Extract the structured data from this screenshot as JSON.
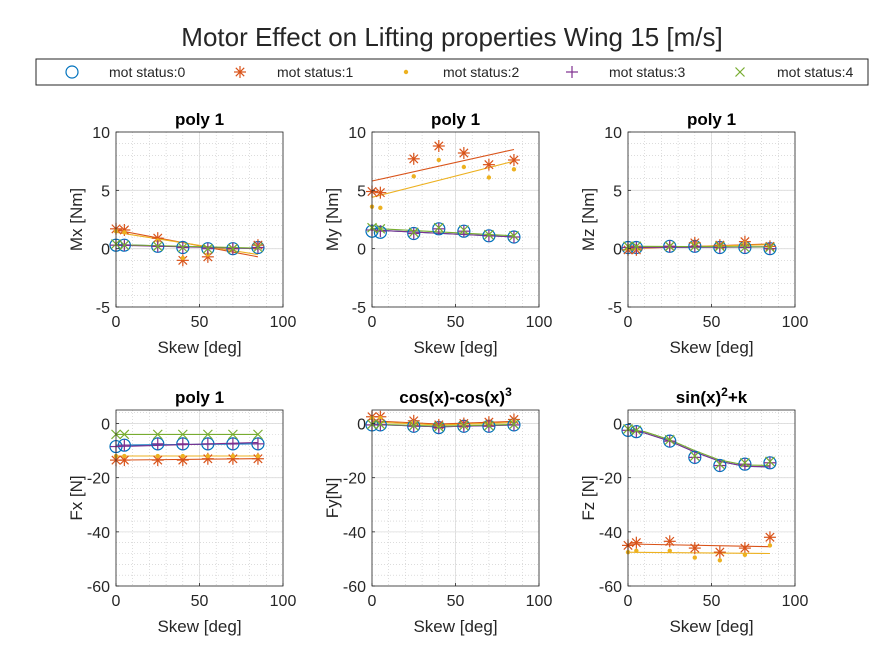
{
  "figure": {
    "title": "Motor Effect on Lifting properties Wing 15 [m/s]"
  },
  "legend": [
    {
      "label": "mot status:0",
      "marker": "circle",
      "color": "#0072BD"
    },
    {
      "label": "mot status:1",
      "marker": "asterisk",
      "color": "#D95319"
    },
    {
      "label": "mot status:2",
      "marker": "dot",
      "color": "#EDB120"
    },
    {
      "label": "mot status:3",
      "marker": "plus",
      "color": "#7E2F8E"
    },
    {
      "label": "mot status:4",
      "marker": "cross",
      "color": "#77AC30"
    }
  ],
  "chart_data": [
    {
      "type": "scatter",
      "title": "poly 1",
      "xlabel": "Skew [deg]",
      "ylabel": "Mx [Nm]",
      "xlim": [
        0,
        100
      ],
      "ylim": [
        -5,
        10
      ],
      "xticks": [
        0,
        50,
        100
      ],
      "yticks": [
        -5,
        0,
        5,
        10
      ],
      "grid": true,
      "minor_grid": true,
      "x": [
        0,
        5,
        25,
        40,
        55,
        70,
        85
      ],
      "series": [
        {
          "name": "mot status:0",
          "values": [
            0.3,
            0.3,
            0.2,
            0.1,
            0.0,
            0.0,
            0.1
          ],
          "fit": [
            [
              0,
              0.35
            ],
            [
              85,
              0.0
            ]
          ]
        },
        {
          "name": "mot status:1",
          "values": [
            1.7,
            1.6,
            0.9,
            -1.0,
            -0.7,
            0.0,
            0.3
          ],
          "fit": [
            [
              0,
              1.6
            ],
            [
              85,
              -0.7
            ]
          ]
        },
        {
          "name": "mot status:2",
          "values": [
            1.5,
            1.4,
            0.7,
            -0.8,
            -0.5,
            0.0,
            0.2
          ],
          "fit": [
            [
              0,
              1.4
            ],
            [
              85,
              -0.5
            ]
          ]
        },
        {
          "name": "mot status:3",
          "values": [
            0.3,
            0.3,
            0.2,
            0.1,
            0.0,
            0.0,
            0.1
          ],
          "fit": [
            [
              0,
              0.3
            ],
            [
              85,
              0.0
            ]
          ]
        },
        {
          "name": "mot status:4",
          "values": [
            0.4,
            0.3,
            0.2,
            0.1,
            0.0,
            0.0,
            0.1
          ],
          "fit": [
            [
              0,
              0.35
            ],
            [
              85,
              0.05
            ]
          ]
        }
      ]
    },
    {
      "type": "scatter",
      "title": "poly 1",
      "xlabel": "Skew [deg]",
      "ylabel": "My [Nm]",
      "xlim": [
        0,
        100
      ],
      "ylim": [
        -5,
        10
      ],
      "xticks": [
        0,
        50,
        100
      ],
      "yticks": [
        -5,
        0,
        5,
        10
      ],
      "grid": true,
      "minor_grid": true,
      "x": [
        0,
        5,
        25,
        40,
        55,
        70,
        85
      ],
      "series": [
        {
          "name": "mot status:0",
          "values": [
            1.5,
            1.4,
            1.3,
            1.7,
            1.5,
            1.1,
            1.0
          ],
          "fit": [
            [
              0,
              1.6
            ],
            [
              85,
              1.0
            ]
          ]
        },
        {
          "name": "mot status:1",
          "values": [
            4.9,
            4.8,
            7.7,
            8.8,
            8.2,
            7.2,
            7.6
          ],
          "fit": [
            [
              0,
              5.8
            ],
            [
              85,
              8.5
            ]
          ]
        },
        {
          "name": "mot status:2",
          "values": [
            3.6,
            3.5,
            6.2,
            7.6,
            7.0,
            6.1,
            6.8
          ],
          "fit": [
            [
              0,
              4.4
            ],
            [
              85,
              7.5
            ]
          ]
        },
        {
          "name": "mot status:3",
          "values": [
            1.6,
            1.5,
            1.3,
            1.7,
            1.5,
            1.1,
            1.0
          ],
          "fit": [
            [
              0,
              1.6
            ],
            [
              85,
              1.0
            ]
          ]
        },
        {
          "name": "mot status:4",
          "values": [
            1.8,
            1.7,
            1.4,
            1.8,
            1.6,
            1.2,
            1.1
          ],
          "fit": [
            [
              0,
              1.75
            ],
            [
              85,
              1.1
            ]
          ]
        }
      ]
    },
    {
      "type": "scatter",
      "title": "poly 1",
      "xlabel": "Skew [deg]",
      "ylabel": "Mz [Nm]",
      "xlim": [
        0,
        100
      ],
      "ylim": [
        -5,
        10
      ],
      "xticks": [
        0,
        50,
        100
      ],
      "yticks": [
        -5,
        0,
        5,
        10
      ],
      "grid": true,
      "minor_grid": true,
      "x": [
        0,
        5,
        25,
        40,
        55,
        70,
        85
      ],
      "series": [
        {
          "name": "mot status:0",
          "values": [
            0.1,
            0.1,
            0.2,
            0.2,
            0.1,
            0.1,
            0.0
          ],
          "fit": [
            [
              0,
              0.1
            ],
            [
              85,
              0.15
            ]
          ]
        },
        {
          "name": "mot status:1",
          "values": [
            -0.1,
            -0.1,
            0.2,
            0.5,
            0.3,
            0.6,
            0.2
          ],
          "fit": [
            [
              0,
              0.0
            ],
            [
              85,
              0.4
            ]
          ]
        },
        {
          "name": "mot status:2",
          "values": [
            0.0,
            0.0,
            0.2,
            0.4,
            0.3,
            0.5,
            0.2
          ],
          "fit": [
            [
              0,
              0.05
            ],
            [
              85,
              0.35
            ]
          ]
        },
        {
          "name": "mot status:3",
          "values": [
            0.1,
            0.1,
            0.2,
            0.2,
            0.1,
            0.1,
            0.0
          ],
          "fit": [
            [
              0,
              0.1
            ],
            [
              85,
              0.15
            ]
          ]
        },
        {
          "name": "mot status:4",
          "values": [
            0.2,
            0.2,
            0.2,
            0.2,
            0.2,
            0.1,
            0.1
          ],
          "fit": [
            [
              0,
              0.2
            ],
            [
              85,
              0.15
            ]
          ]
        }
      ]
    },
    {
      "type": "scatter",
      "title": "poly 1",
      "xlabel": "Skew [deg]",
      "ylabel": "Fx [N]",
      "xlim": [
        0,
        100
      ],
      "ylim": [
        -60,
        5
      ],
      "xticks": [
        0,
        50,
        100
      ],
      "yticks": [
        -60,
        -40,
        -20,
        0
      ],
      "grid": true,
      "minor_grid": true,
      "x": [
        0,
        5,
        25,
        40,
        55,
        70,
        85
      ],
      "series": [
        {
          "name": "mot status:0",
          "values": [
            -8.5,
            -8.0,
            -7.5,
            -7.5,
            -7.5,
            -7.5,
            -7.5
          ],
          "fit": [
            [
              0,
              -8.0
            ],
            [
              85,
              -7.5
            ]
          ]
        },
        {
          "name": "mot status:1",
          "values": [
            -13.5,
            -13.5,
            -13.5,
            -13.5,
            -13.0,
            -13.0,
            -13.0
          ],
          "fit": [
            [
              0,
              -13.5
            ],
            [
              85,
              -13.0
            ]
          ]
        },
        {
          "name": "mot status:2",
          "values": [
            -12.0,
            -12.0,
            -12.0,
            -12.0,
            -12.0,
            -12.0,
            -12.0
          ],
          "fit": [
            [
              0,
              -12.0
            ],
            [
              85,
              -12.0
            ]
          ]
        },
        {
          "name": "mot status:3",
          "values": [
            -8.5,
            -8.0,
            -7.5,
            -7.5,
            -7.5,
            -7.5,
            -7.5
          ],
          "fit": [
            [
              0,
              -8.5
            ],
            [
              85,
              -7.0
            ]
          ]
        },
        {
          "name": "mot status:4",
          "values": [
            -4.0,
            -4.0,
            -4.0,
            -4.0,
            -4.0,
            -4.0,
            -4.0
          ],
          "fit": [
            [
              0,
              -4.0
            ],
            [
              85,
              -4.0
            ]
          ]
        }
      ]
    },
    {
      "type": "scatter",
      "title": "cos(x)-cos(x)",
      "title_sup": "3",
      "xlabel": "Skew [deg]",
      "ylabel": "Fy[N]",
      "xlim": [
        0,
        100
      ],
      "ylim": [
        -60,
        5
      ],
      "xticks": [
        0,
        50,
        100
      ],
      "yticks": [
        -60,
        -40,
        -20,
        0
      ],
      "grid": true,
      "minor_grid": true,
      "x": [
        0,
        5,
        25,
        40,
        55,
        70,
        85
      ],
      "series": [
        {
          "name": "mot status:0",
          "values": [
            -0.5,
            -0.5,
            -1.0,
            -1.5,
            -1.0,
            -1.0,
            -0.5
          ],
          "fit": [
            [
              0,
              -0.3
            ],
            [
              40,
              -1.2
            ],
            [
              85,
              -0.5
            ]
          ]
        },
        {
          "name": "mot status:1",
          "values": [
            2.5,
            2.5,
            1.0,
            -0.5,
            0.0,
            0.5,
            1.5
          ],
          "fit": [
            [
              0,
              1.0
            ],
            [
              40,
              -0.2
            ],
            [
              85,
              0.8
            ]
          ]
        },
        {
          "name": "mot status:2",
          "values": [
            2.0,
            2.0,
            0.5,
            -1.0,
            -0.5,
            0.0,
            1.0
          ],
          "fit": [
            [
              0,
              0.6
            ],
            [
              40,
              -0.5
            ],
            [
              85,
              0.4
            ]
          ]
        },
        {
          "name": "mot status:3",
          "values": [
            -0.5,
            -0.5,
            -1.0,
            -1.5,
            -1.0,
            -1.0,
            -0.5
          ],
          "fit": [
            [
              0,
              -0.3
            ],
            [
              40,
              -1.2
            ],
            [
              85,
              -0.5
            ]
          ]
        },
        {
          "name": "mot status:4",
          "values": [
            -0.3,
            -0.3,
            -0.8,
            -1.2,
            -0.8,
            -0.8,
            -0.3
          ],
          "fit": [
            [
              0,
              -0.2
            ],
            [
              40,
              -1.0
            ],
            [
              85,
              -0.3
            ]
          ]
        }
      ]
    },
    {
      "type": "scatter",
      "title": "sin(x)",
      "title_sup": "2",
      "title_tail": "+k",
      "xlabel": "Skew [deg]",
      "ylabel": "Fz [N]",
      "xlim": [
        0,
        100
      ],
      "ylim": [
        -60,
        5
      ],
      "xticks": [
        0,
        50,
        100
      ],
      "yticks": [
        -60,
        -40,
        -20,
        0
      ],
      "grid": true,
      "minor_grid": true,
      "x": [
        0,
        5,
        25,
        40,
        55,
        70,
        85
      ],
      "series": [
        {
          "name": "mot status:0",
          "values": [
            -2.5,
            -3.0,
            -6.5,
            -12.5,
            -15.5,
            -15.0,
            -14.5
          ],
          "fit": [
            [
              0,
              -2.5
            ],
            [
              10,
              -3.5
            ],
            [
              25,
              -6.5
            ],
            [
              40,
              -10.5
            ],
            [
              55,
              -14.0
            ],
            [
              70,
              -15.8
            ],
            [
              85,
              -16.0
            ]
          ]
        },
        {
          "name": "mot status:1",
          "values": [
            -45.0,
            -44.0,
            -43.5,
            -46.0,
            -47.5,
            -46.0,
            -42.0
          ],
          "fit": [
            [
              0,
              -44.5
            ],
            [
              85,
              -45.5
            ]
          ]
        },
        {
          "name": "mot status:2",
          "values": [
            -47.5,
            -47.0,
            -47.0,
            -49.5,
            -50.5,
            -48.5,
            -45.0
          ],
          "fit": [
            [
              0,
              -47.5
            ],
            [
              85,
              -48.0
            ]
          ]
        },
        {
          "name": "mot status:3",
          "values": [
            -2.5,
            -3.0,
            -6.5,
            -12.5,
            -15.5,
            -15.0,
            -14.5
          ],
          "fit": [
            [
              0,
              -2.5
            ],
            [
              10,
              -3.5
            ],
            [
              25,
              -6.5
            ],
            [
              40,
              -10.5
            ],
            [
              55,
              -14.0
            ],
            [
              70,
              -15.8
            ],
            [
              85,
              -16.0
            ]
          ]
        },
        {
          "name": "mot status:4",
          "values": [
            -2.0,
            -2.5,
            -6.0,
            -12.0,
            -15.0,
            -14.5,
            -14.0
          ],
          "fit": [
            [
              0,
              -2.0
            ],
            [
              10,
              -3.0
            ],
            [
              25,
              -6.0
            ],
            [
              40,
              -10.0
            ],
            [
              55,
              -13.5
            ],
            [
              70,
              -15.3
            ],
            [
              85,
              -15.5
            ]
          ]
        }
      ]
    }
  ]
}
